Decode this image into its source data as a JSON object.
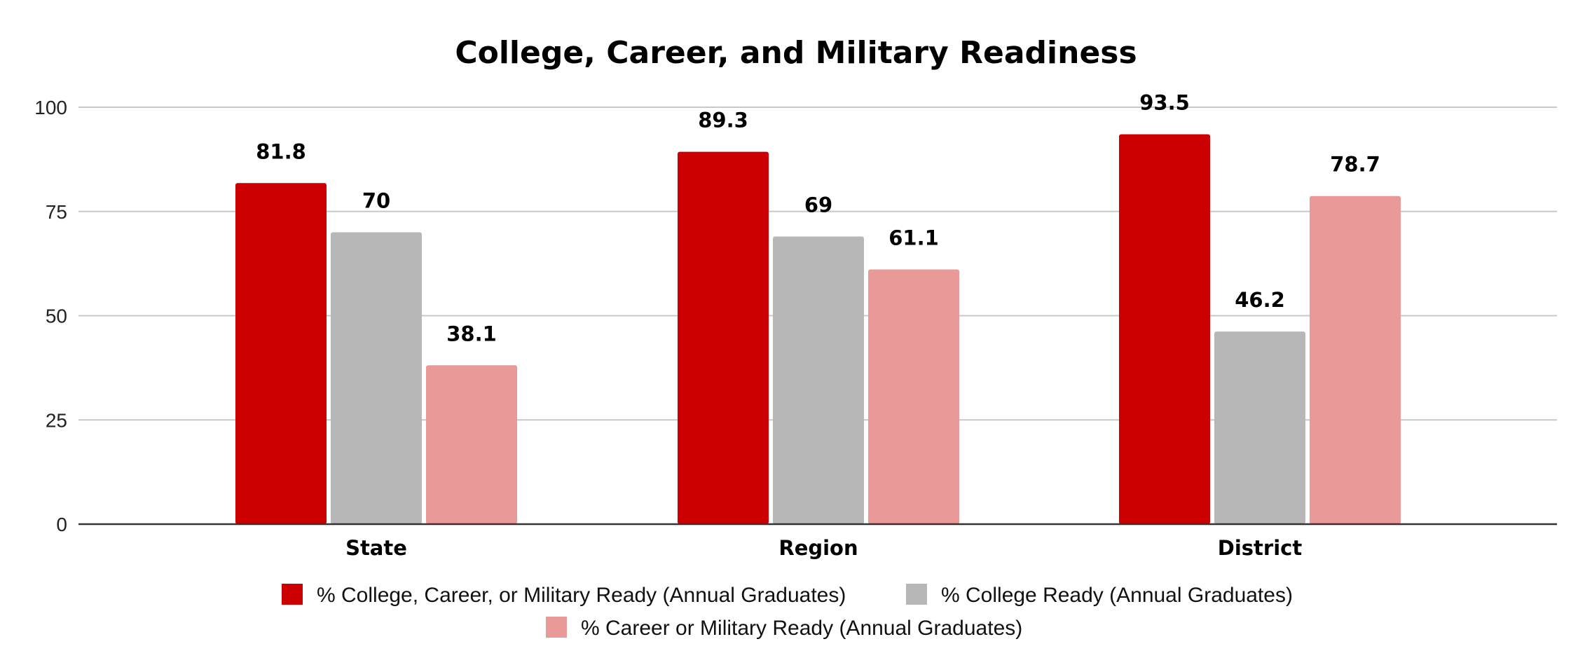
{
  "chart_data": {
    "type": "bar",
    "title": "College, Career, and Military Readiness",
    "categories": [
      "State",
      "Region",
      "District"
    ],
    "series": [
      {
        "name": "% College, Career, or Military Ready (Annual Graduates)",
        "values": [
          81.8,
          89.3,
          93.5
        ],
        "color": "#cc0000"
      },
      {
        "name": "% College Ready (Annual Graduates)",
        "values": [
          70,
          69,
          46.2
        ],
        "color": "#b7b7b7"
      },
      {
        "name": "% Career or Military Ready (Annual Graduates)",
        "values": [
          38.1,
          61.1,
          78.7
        ],
        "color": "#ea9999"
      }
    ],
    "data_labels": [
      [
        "81.8",
        "89.3",
        "93.5"
      ],
      [
        "70",
        "69",
        "46.2"
      ],
      [
        "38.1",
        "61.1",
        "78.7"
      ]
    ],
    "yticks": [
      "0",
      "25",
      "50",
      "75",
      "100"
    ],
    "ylim": [
      0,
      100
    ],
    "grid": true,
    "legend_position": "bottom"
  }
}
